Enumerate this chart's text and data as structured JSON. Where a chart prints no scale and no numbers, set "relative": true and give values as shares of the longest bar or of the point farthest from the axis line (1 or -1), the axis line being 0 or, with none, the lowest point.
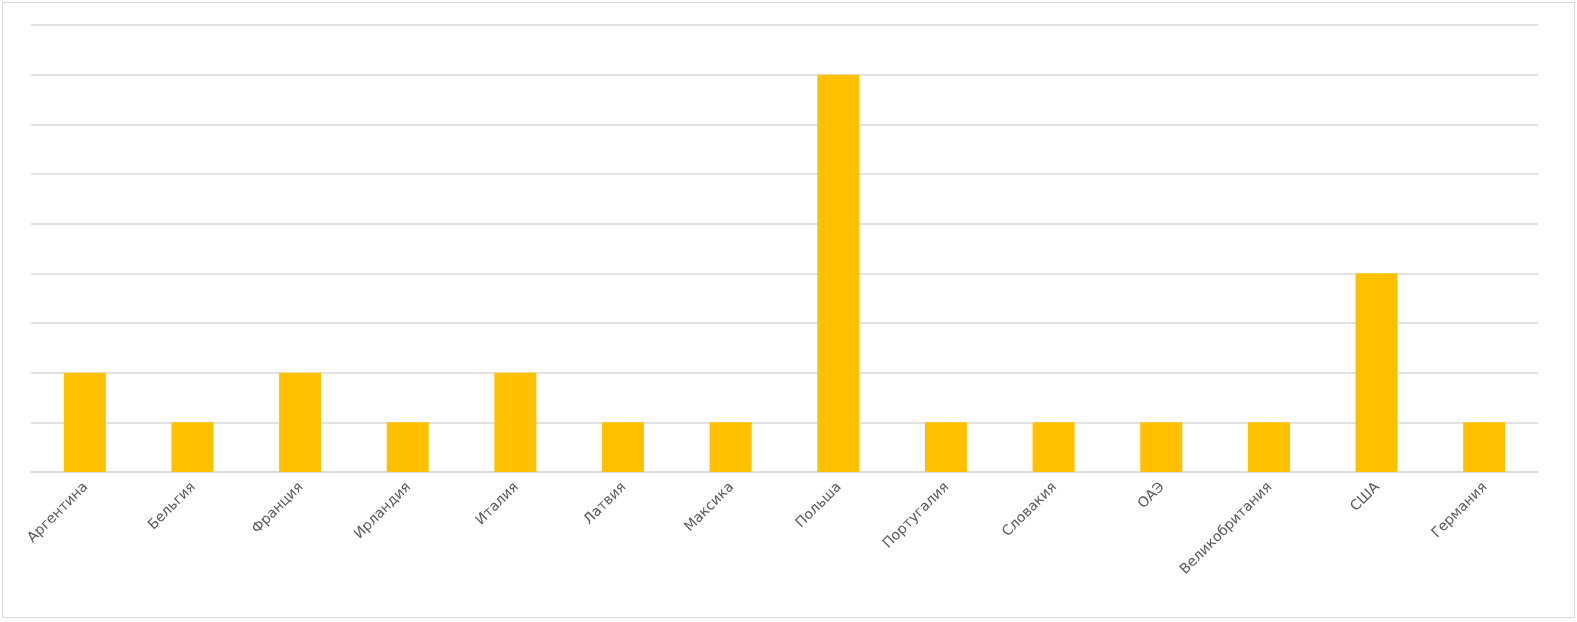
{
  "chart_data": {
    "type": "bar",
    "categories": [
      "Аргентина",
      "Бельгия",
      "Франция",
      "Ирландия",
      "Италия",
      "Латвия",
      "Максика",
      "Польша",
      "Португалия",
      "Словакия",
      "ОАЭ",
      "Великобритания",
      "США",
      "Германия"
    ],
    "values": [
      0.25,
      0.125,
      0.25,
      0.125,
      0.25,
      0.125,
      0.125,
      1,
      0.125,
      0.125,
      0.125,
      0.125,
      0.5,
      0.125
    ],
    "color": "#ffc000",
    "relative": true,
    "grid": true
  }
}
